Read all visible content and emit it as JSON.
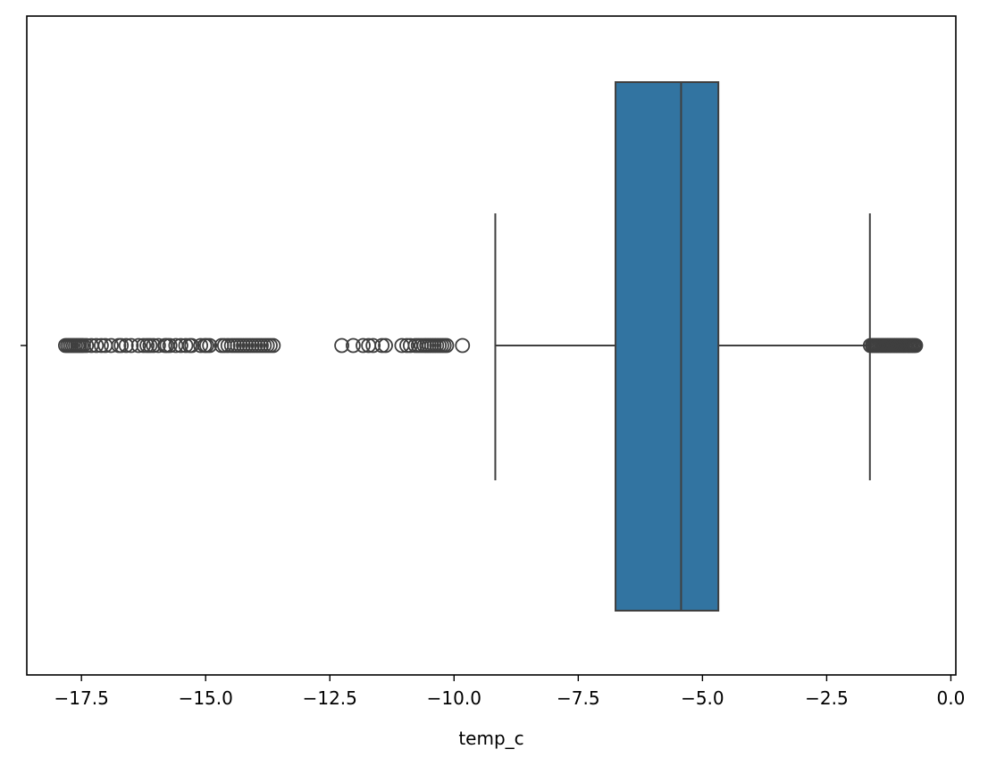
{
  "chart_data": {
    "type": "box",
    "xlabel": "temp_c",
    "ylabel": "",
    "xlim": [
      -18.6,
      0.1
    ],
    "xticks": [
      -17.5,
      -15.0,
      -12.5,
      -10.0,
      -7.5,
      -5.0,
      -2.5,
      0.0
    ],
    "xtick_labels": [
      "−17.5",
      "−15.0",
      "−12.5",
      "−10.0",
      "−7.5",
      "−5.0",
      "−2.5",
      "0.0"
    ],
    "grid": false,
    "box": {
      "q1": -6.75,
      "median": -5.43,
      "q3": -4.68,
      "whisker_low": -9.17,
      "whisker_high": -1.63,
      "fill_color": "#3274a1",
      "edge_color": "#3f3f3f"
    },
    "outliers": [
      -17.82,
      -17.78,
      -17.74,
      -17.7,
      -17.66,
      -17.62,
      -17.58,
      -17.54,
      -17.5,
      -17.46,
      -17.4,
      -17.3,
      -17.2,
      -17.1,
      -17.02,
      -16.9,
      -16.75,
      -16.7,
      -16.6,
      -16.5,
      -16.35,
      -16.25,
      -16.18,
      -16.12,
      -16.05,
      -15.95,
      -15.82,
      -15.78,
      -15.72,
      -15.6,
      -15.5,
      -15.4,
      -15.32,
      -15.28,
      -15.1,
      -15.02,
      -14.98,
      -14.92,
      -14.68,
      -14.62,
      -14.55,
      -14.48,
      -14.42,
      -14.36,
      -14.3,
      -14.24,
      -14.18,
      -14.12,
      -14.06,
      -14.0,
      -13.94,
      -13.88,
      -13.82,
      -13.76,
      -13.7,
      -13.64,
      -12.26,
      -12.03,
      -11.83,
      -11.72,
      -11.63,
      -11.45,
      -11.38,
      -11.05,
      -10.95,
      -10.88,
      -10.78,
      -10.72,
      -10.66,
      -10.6,
      -10.55,
      -10.5,
      -10.45,
      -10.4,
      -10.35,
      -10.3,
      -10.25,
      -10.2,
      -10.15,
      -9.83,
      -1.62,
      -1.58,
      -1.55,
      -1.52,
      -1.49,
      -1.46,
      -1.43,
      -1.4,
      -1.37,
      -1.34,
      -1.31,
      -1.28,
      -1.25,
      -1.22,
      -1.19,
      -1.16,
      -1.13,
      -1.1,
      -1.07,
      -1.04,
      -1.01,
      -0.98,
      -0.95,
      -0.92,
      -0.89,
      -0.86,
      -0.83,
      -0.8,
      -0.77,
      -0.74,
      -0.71
    ]
  }
}
